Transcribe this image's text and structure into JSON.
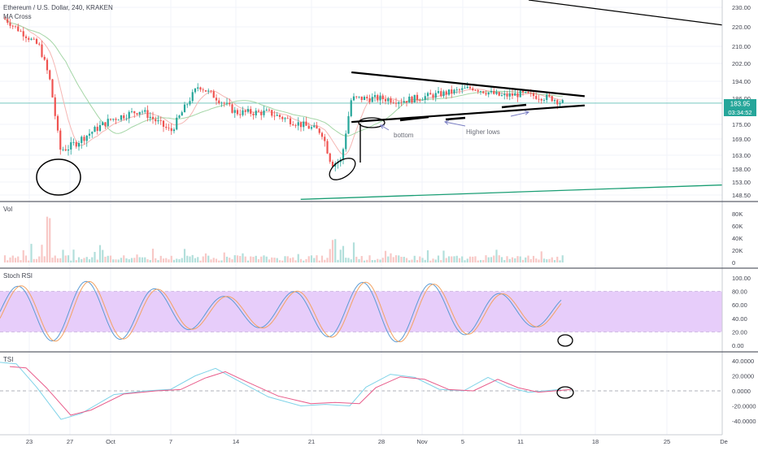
{
  "header": {
    "symbol_title": "Ethereum / U.S. Dollar, 240, KRAKEN",
    "indicator_label": "MA Cross"
  },
  "panes": {
    "volume_label": "Vol",
    "stoch_label": "Stoch RSI",
    "tsi_label": "TSI"
  },
  "price_tags": {
    "last_price": "183.95",
    "countdown": "03:34:52"
  },
  "annotations": {
    "bottom": "bottom",
    "higher_lows": "Higher lows"
  },
  "colors": {
    "up": "#26a69a",
    "down": "#ef5350",
    "ma_fast": "#f5b6b3",
    "ma_slow": "#a5d6a7",
    "stoch_k": "#5b9bd5",
    "stoch_d": "#f4a261",
    "stoch_band": "#e7cdfa",
    "tsi_main": "#7fd3e8",
    "tsi_signal": "#e85b8a",
    "last_price": "#26a69a",
    "green_trend": "#1a9e74"
  },
  "chart_data": [
    {
      "type": "candlestick",
      "title": "Ethereum / U.S. Dollar, 240, KRAKEN",
      "x_tick_labels": [
        "23",
        "27",
        "Oct",
        "7",
        "14",
        "21",
        "28",
        "Nov",
        "5",
        "11",
        "18",
        "25",
        "De"
      ],
      "y_ticks": [
        230.0,
        220.0,
        210.0,
        202.0,
        194.0,
        186.0,
        175.0,
        169.0,
        163.0,
        158.0,
        153.0,
        148.5
      ],
      "y_tick_labels": [
        "230.00",
        "220.00",
        "210.00",
        "202.00",
        "194.00",
        "186.00",
        "175.00",
        "169.00",
        "163.00",
        "158.00",
        "153.00",
        "148.50"
      ],
      "last_price": 183.95,
      "key_points": [
        {
          "date": "Sep 22",
          "price": 224
        },
        {
          "date": "Sep 24",
          "price": 210
        },
        {
          "date": "Sep 25",
          "price": 195
        },
        {
          "date": "Sep 26",
          "price": 165
        },
        {
          "date": "Sep 27",
          "price": 166
        },
        {
          "date": "Oct 1",
          "price": 177
        },
        {
          "date": "Oct 4",
          "price": 181
        },
        {
          "date": "Oct 7",
          "price": 172
        },
        {
          "date": "Oct 10",
          "price": 192
        },
        {
          "date": "Oct 14",
          "price": 180
        },
        {
          "date": "Oct 17",
          "price": 180
        },
        {
          "date": "Oct 20",
          "price": 175
        },
        {
          "date": "Oct 22",
          "price": 172
        },
        {
          "date": "Oct 23",
          "price": 160
        },
        {
          "date": "Oct 24",
          "price": 161
        },
        {
          "date": "Oct 25",
          "price": 186
        },
        {
          "date": "Oct 28",
          "price": 186
        },
        {
          "date": "Oct 30",
          "price": 185
        },
        {
          "date": "Nov 4",
          "price": 189
        },
        {
          "date": "Nov 6",
          "price": 191
        },
        {
          "date": "Nov 9",
          "price": 187
        },
        {
          "date": "Nov 11",
          "price": 188
        },
        {
          "date": "Nov 14",
          "price": 186
        },
        {
          "date": "Nov 15",
          "price": 183.95
        }
      ],
      "trendlines": [
        {
          "name": "triangle-upper",
          "from": {
            "date": "Oct 25",
            "price": 198
          },
          "to": {
            "date": "Nov 17",
            "price": 187
          }
        },
        {
          "name": "triangle-lower",
          "from": {
            "date": "Oct 25",
            "price": 176
          },
          "to": {
            "date": "Nov 17",
            "price": 183
          }
        },
        {
          "name": "long-support",
          "from": {
            "date": "Oct 20",
            "price": 147
          },
          "to": {
            "date": "Dec 1",
            "price": 152
          }
        }
      ]
    },
    {
      "type": "bar",
      "title": "Vol",
      "y_tick_labels": [
        "80K",
        "60K",
        "40K",
        "20K",
        "0"
      ],
      "y_ticks": [
        80000,
        60000,
        40000,
        20000,
        0
      ]
    },
    {
      "type": "line",
      "title": "Stoch RSI",
      "y_tick_labels": [
        "100.00",
        "80.00",
        "60.00",
        "40.00",
        "20.00",
        "0.00"
      ],
      "y_ticks": [
        100,
        80,
        60,
        40,
        20,
        0
      ],
      "band": [
        20,
        80
      ]
    },
    {
      "type": "line",
      "title": "TSI",
      "y_tick_labels": [
        "40.0000",
        "20.0000",
        "0.0000",
        "-20.0000",
        "-40.0000"
      ],
      "y_ticks": [
        40,
        20,
        0,
        -20,
        -40
      ]
    }
  ]
}
